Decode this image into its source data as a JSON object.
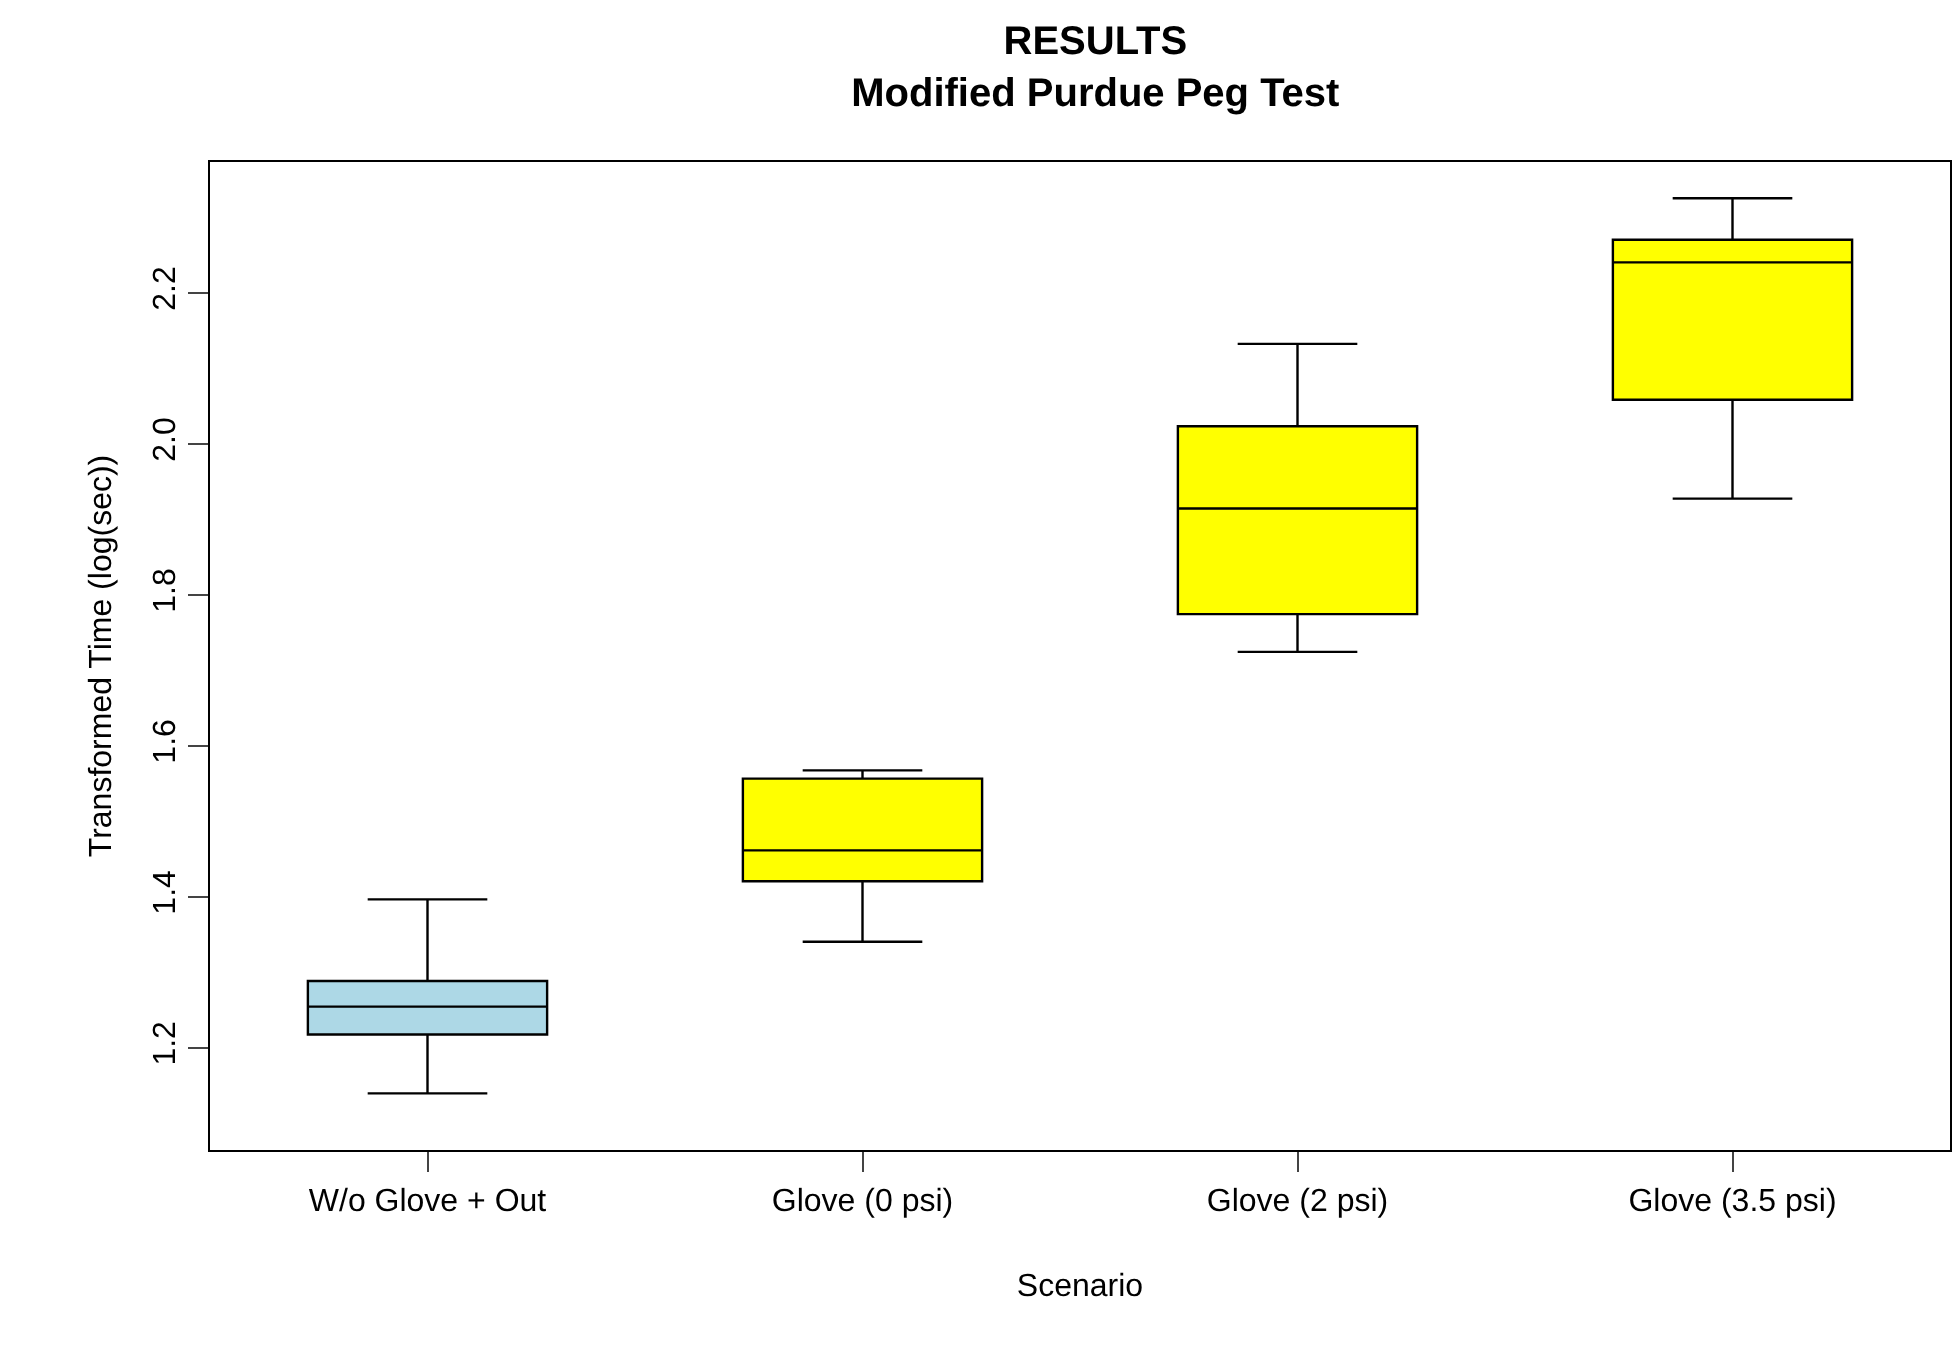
{
  "chart_data": {
    "type": "box",
    "title": "RESULTS\nModified Purdue Peg Test",
    "xlabel": "Scenario",
    "ylabel": "Transformed Time (log(sec))",
    "categories": [
      "W/o Glove + Out",
      "Glove (0 psi)",
      "Glove (2 psi)",
      "Glove (3.5 psi)"
    ],
    "colors": [
      "#add8e6",
      "#ffff00",
      "#ffff00",
      "#ffff00"
    ],
    "boxes": [
      {
        "low": 1.14,
        "q1": 1.218,
        "median": 1.255,
        "q3": 1.289,
        "high": 1.397
      },
      {
        "low": 1.341,
        "q1": 1.421,
        "median": 1.462,
        "q3": 1.557,
        "high": 1.568
      },
      {
        "low": 1.725,
        "q1": 1.775,
        "median": 1.915,
        "q3": 2.024,
        "high": 2.133
      },
      {
        "low": 1.928,
        "q1": 2.059,
        "median": 2.241,
        "q3": 2.271,
        "high": 2.326
      }
    ],
    "ylim": [
      1.065,
      2.374
    ],
    "yticks": [
      1.2,
      1.4,
      1.6,
      1.8,
      {
        "value": 2,
        "label": "2.0"
      },
      2.2
    ]
  }
}
